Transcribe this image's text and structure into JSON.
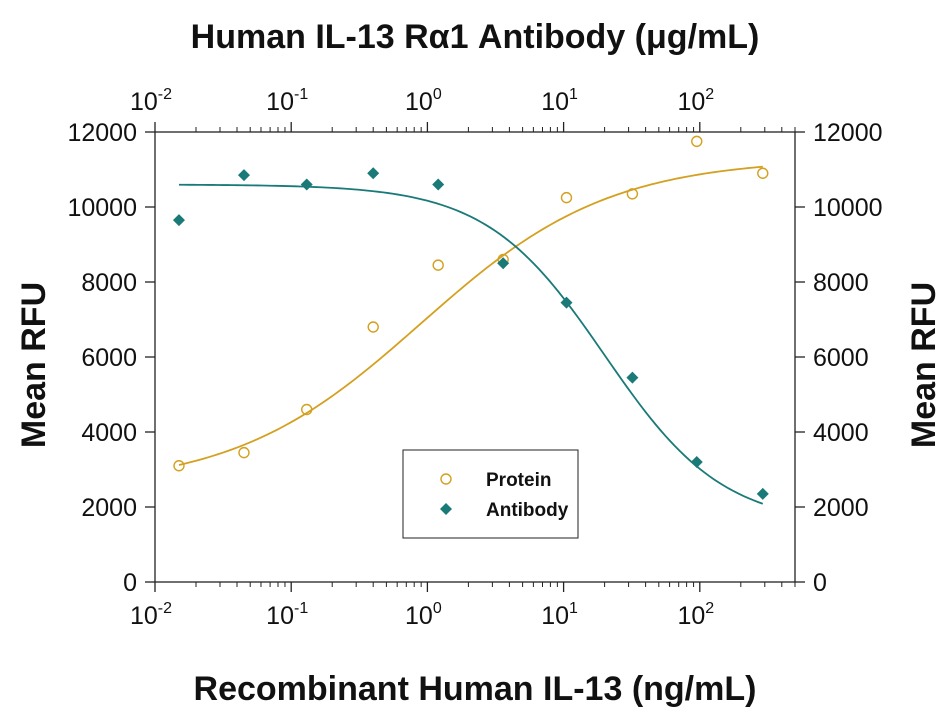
{
  "chart_data": {
    "type": "scatter",
    "title": "Human IL-13 Rα1 Antibody (μg/mL)",
    "xlabel": "Recombinant Human IL-13 (ng/mL)",
    "ylabel": "Mean RFU",
    "ylabel_right": "Mean RFU",
    "x_scale": "log",
    "xlim": [
      0.01,
      500
    ],
    "ylim": [
      0,
      12000
    ],
    "x_ticks": [
      {
        "base": "10",
        "exp": "-2",
        "value": 0.01
      },
      {
        "base": "10",
        "exp": "-1",
        "value": 0.1
      },
      {
        "base": "10",
        "exp": "0",
        "value": 1
      },
      {
        "base": "10",
        "exp": "1",
        "value": 10
      },
      {
        "base": "10",
        "exp": "2",
        "value": 100
      }
    ],
    "y_ticks": [
      "0",
      "2000",
      "4000",
      "6000",
      "8000",
      "10000",
      "12000"
    ],
    "grid": false,
    "legend_position": "bottom-center",
    "series": [
      {
        "name": "Protein",
        "marker": "open-circle",
        "color": "#d4a020",
        "points": [
          {
            "x": 0.015,
            "y": 3100
          },
          {
            "x": 0.045,
            "y": 3450
          },
          {
            "x": 0.13,
            "y": 4600
          },
          {
            "x": 0.4,
            "y": 6800
          },
          {
            "x": 1.2,
            "y": 8450
          },
          {
            "x": 3.6,
            "y": 8600
          },
          {
            "x": 10.5,
            "y": 10250
          },
          {
            "x": 32,
            "y": 10350
          },
          {
            "x": 95,
            "y": 11750
          },
          {
            "x": 290,
            "y": 10900
          }
        ],
        "fit": {
          "bottom": 2500,
          "top": 11300,
          "ec50": 0.9,
          "hill": 0.63
        }
      },
      {
        "name": "Antibody",
        "marker": "filled-diamond",
        "color": "#1a7a78",
        "points": [
          {
            "x": 0.015,
            "y": 9650
          },
          {
            "x": 0.045,
            "y": 10850
          },
          {
            "x": 0.13,
            "y": 10600
          },
          {
            "x": 0.4,
            "y": 10900
          },
          {
            "x": 1.2,
            "y": 10600
          },
          {
            "x": 3.6,
            "y": 8500
          },
          {
            "x": 10.5,
            "y": 7450
          },
          {
            "x": 32,
            "y": 5450
          },
          {
            "x": 95,
            "y": 3200
          },
          {
            "x": 290,
            "y": 2350
          }
        ],
        "fit": {
          "bottom": 1500,
          "top": 10600,
          "ec50": 20,
          "hill": 1.0
        }
      }
    ]
  }
}
